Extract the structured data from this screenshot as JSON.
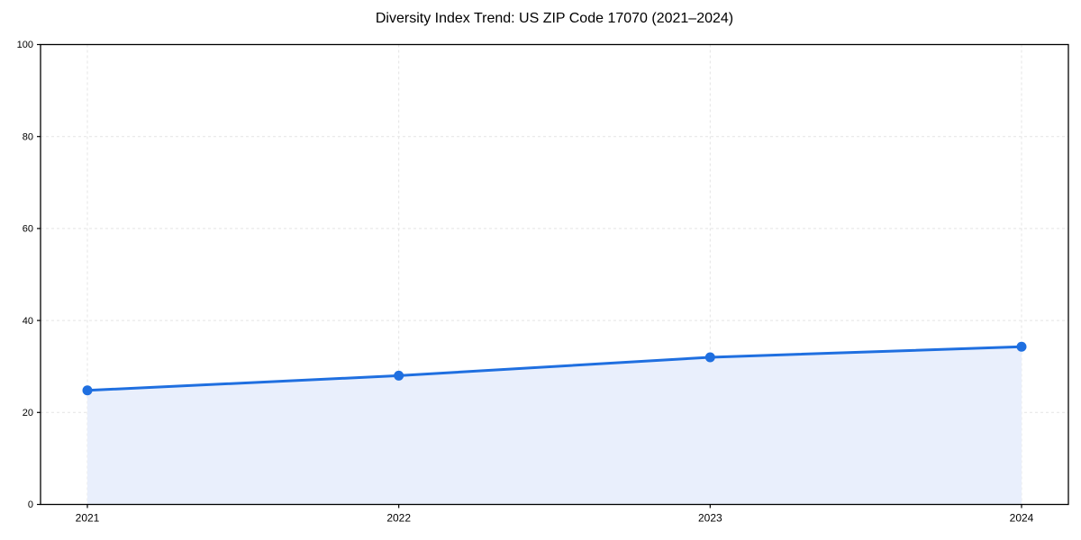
{
  "chart_data": {
    "type": "area",
    "title": "Diversity Index Trend: US ZIP Code 17070 (2021–2024)",
    "categories": [
      "2021",
      "2022",
      "2023",
      "2024"
    ],
    "values": [
      24.8,
      28.0,
      32.0,
      34.3
    ],
    "xlabel": "",
    "ylabel": "",
    "ylim": [
      0,
      100
    ],
    "yticks": [
      0,
      20,
      40,
      60,
      80,
      100
    ],
    "grid": "dashed, on both axes",
    "legend": "none",
    "colors": {
      "line": "#1f6fe0",
      "marker": "#1f6fe0",
      "fill": "#e9effc",
      "grid": "#e4e4e4",
      "axis": "#000000",
      "background": "#ffffff",
      "tick_label": "#000000"
    }
  }
}
